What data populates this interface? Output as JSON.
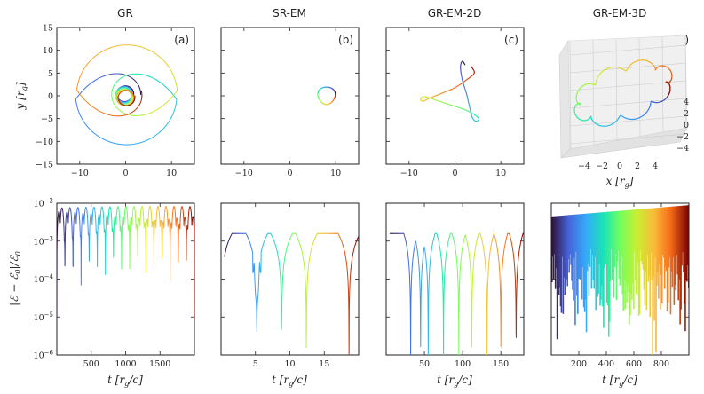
{
  "panels_top": [
    {
      "title": "GR",
      "label": "(a)",
      "xticks": [
        -10,
        0,
        10
      ],
      "yticks": [
        15,
        10,
        5,
        0,
        -5,
        -10,
        -15
      ],
      "xlim": [
        -15,
        15
      ],
      "ylim": [
        -15,
        15
      ]
    },
    {
      "title": "SR-EM",
      "label": "(b)",
      "xticks": [
        -10,
        0,
        10
      ],
      "xlim": [
        -15,
        15
      ],
      "ylim": [
        -15,
        15
      ]
    },
    {
      "title": "GR-EM-2D",
      "label": "(c)",
      "xticks": [
        -10,
        0,
        10
      ],
      "xlim": [
        -15,
        15
      ],
      "ylim": [
        -15,
        15
      ]
    },
    {
      "title": "GR-EM-3D",
      "label": "(d)",
      "xticks": [
        -4,
        -2,
        0,
        2,
        4
      ],
      "zticks": [
        4,
        2,
        0,
        -2,
        -4
      ]
    }
  ],
  "axis_labels": {
    "top_y": "y [r",
    "top_y_sub": "g",
    "top_y_close": "]",
    "bottom_y": "|ℰ − ℰ",
    "bottom_y_sub0": "0",
    "bottom_y_mid": "|/ℰ",
    "bottom_y_sub1": "0",
    "x3d": "x [r",
    "x3d_sub": "g",
    "x3d_close": "]",
    "t": "t [r",
    "t_sub": "g",
    "t_close": "/c]"
  },
  "chart_data": [
    {
      "type": "line",
      "title": "GR",
      "xlabel": "x [r_g]",
      "ylabel": "y [r_g]",
      "xlim": [
        -15,
        15
      ],
      "ylim": [
        -15,
        15
      ],
      "description_values": {
        "orbit_radius_range": [
          1,
          11
        ],
        "petals": 3
      }
    },
    {
      "type": "line",
      "title": "SR-EM",
      "xlim": [
        -15,
        15
      ],
      "ylim": [
        -15,
        15
      ],
      "description_values": {
        "center": [
          8,
          0
        ],
        "radius": 1.8
      }
    },
    {
      "type": "line",
      "title": "GR-EM-2D",
      "xlim": [
        -15,
        15
      ],
      "ylim": [
        -15,
        15
      ]
    },
    {
      "type": "line",
      "title": "GR-EM-3D",
      "xlabel": "x [r_g]",
      "xlim": [
        -4,
        4
      ],
      "zlim": [
        -4,
        4
      ]
    },
    {
      "type": "line",
      "ylabel": "|E - E0|/E0",
      "xlabel": "t [r_g/c]",
      "xlim": [
        0,
        2000
      ],
      "ylim_log": [
        -6,
        -2
      ],
      "xticks": [
        500,
        1000,
        1500
      ],
      "yticks_exp": [
        -2,
        -3,
        -4,
        -5,
        -6
      ],
      "peaks": 17
    },
    {
      "type": "line",
      "xlabel": "t [r_g/c]",
      "xlim": [
        0,
        20
      ],
      "ylim_log": [
        -6,
        -2
      ],
      "xticks": [
        5,
        10,
        15
      ],
      "dips": [
        5.2,
        8.8,
        12.4
      ]
    },
    {
      "type": "line",
      "xlabel": "t [r_g/c]",
      "xlim": [
        0,
        180
      ],
      "ylim_log": [
        -6,
        -2
      ],
      "xticks": [
        50,
        100,
        150
      ],
      "dips": [
        32,
        55,
        75,
        95,
        112,
        132,
        150,
        170
      ]
    },
    {
      "type": "area",
      "xlabel": "t [r_g/c]",
      "xlim": [
        0,
        1000
      ],
      "ylim_log": [
        -6,
        -2
      ],
      "xticks": [
        200,
        400,
        600,
        800
      ],
      "upper_envelope": [
        [
          0,
          -2.35
        ],
        [
          1000,
          -2.05
        ]
      ]
    }
  ]
}
